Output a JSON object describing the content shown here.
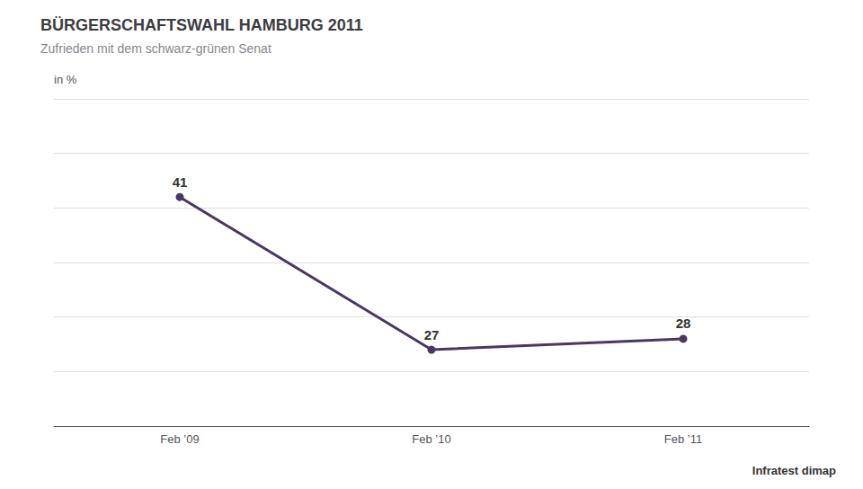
{
  "chart_data": {
    "type": "line",
    "title": "BÜRGERSCHAFTSWAHL HAMBURG 2011",
    "subtitle": "Zufrieden mit dem schwarz-grünen Senat",
    "ylabel": "in %",
    "annotations": [
      "Infratest dimap"
    ],
    "categories": [
      "Feb ’09",
      "Feb ’10",
      "Feb ’11"
    ],
    "values": [
      41,
      27,
      28
    ],
    "color": "#4a3860",
    "marker": "circle",
    "ylim": [
      20,
      50
    ],
    "yticks": [
      20,
      25,
      30,
      35,
      40,
      45,
      50
    ],
    "grid": true,
    "data_labels": true,
    "tick_labels": "x"
  }
}
